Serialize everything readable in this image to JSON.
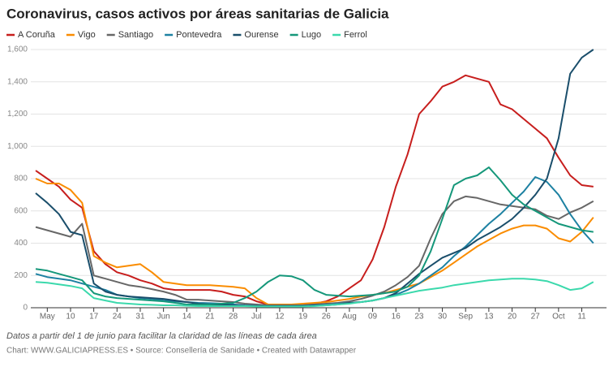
{
  "chart_data": {
    "type": "line",
    "title": "Coronavirus, casos activos por áreas sanitarias de Galicia",
    "note": "Datos a partir del 1 de junio para facilitar la claridad de las líneas de cada área",
    "source": "Chart: WWW.GALICIAPRESS.ES • Source: Consellería de Sanidade • Created with Datawrapper",
    "categories": [
      null,
      "May",
      null,
      "10",
      null,
      "17",
      null,
      "24",
      null,
      "31",
      null,
      "Jun",
      null,
      "14",
      null,
      "21",
      null,
      "28",
      null,
      "Jul",
      null,
      "12",
      null,
      "19",
      null,
      "26",
      null,
      "Aug",
      null,
      "09",
      null,
      "16",
      null,
      "23",
      null,
      "30",
      null,
      "Sep",
      null,
      "13",
      null,
      "20",
      null,
      "27",
      null,
      "Oct",
      null,
      "11",
      null
    ],
    "ylim": [
      0,
      1600
    ],
    "yticks": [
      0,
      200,
      400,
      600,
      800,
      {
        "value": 1000,
        "label": "1,000"
      },
      {
        "value": 1200,
        "label": "1,200"
      },
      {
        "value": 1400,
        "label": "1,400"
      },
      {
        "value": 1600,
        "label": "1,600"
      }
    ],
    "grid": true,
    "series": [
      {
        "name": "A Coruña",
        "color": "#c71e1d",
        "values": [
          850,
          800,
          750,
          670,
          620,
          350,
          270,
          220,
          200,
          170,
          150,
          120,
          110,
          110,
          110,
          110,
          100,
          80,
          70,
          40,
          20,
          20,
          20,
          20,
          25,
          40,
          70,
          120,
          170,
          300,
          500,
          750,
          950,
          1200,
          1280,
          1370,
          1400,
          1440,
          1420,
          1400,
          1260,
          1230,
          1170,
          1110,
          1050,
          930,
          820,
          760,
          750
        ]
      },
      {
        "name": "Vigo",
        "color": "#fa8c00",
        "values": [
          800,
          770,
          770,
          730,
          650,
          320,
          280,
          250,
          260,
          270,
          220,
          160,
          150,
          140,
          140,
          140,
          135,
          130,
          120,
          60,
          20,
          20,
          20,
          25,
          30,
          35,
          45,
          55,
          70,
          80,
          90,
          110,
          130,
          150,
          190,
          230,
          280,
          330,
          380,
          420,
          460,
          490,
          510,
          510,
          490,
          430,
          410,
          470,
          560
        ]
      },
      {
        "name": "Santiago",
        "color": "#676767",
        "values": [
          500,
          480,
          460,
          440,
          520,
          200,
          180,
          160,
          140,
          130,
          115,
          100,
          80,
          50,
          50,
          45,
          40,
          35,
          25,
          20,
          15,
          15,
          15,
          15,
          20,
          25,
          30,
          40,
          55,
          75,
          100,
          140,
          190,
          260,
          430,
          580,
          660,
          690,
          680,
          660,
          640,
          630,
          620,
          610,
          570,
          550,
          590,
          620,
          660
        ]
      },
      {
        "name": "Pontevedra",
        "color": "#1d81a2",
        "values": [
          210,
          190,
          180,
          170,
          150,
          130,
          110,
          80,
          70,
          60,
          55,
          45,
          40,
          35,
          30,
          28,
          25,
          20,
          15,
          12,
          10,
          10,
          10,
          12,
          15,
          18,
          25,
          30,
          35,
          45,
          60,
          80,
          110,
          150,
          200,
          250,
          320,
          380,
          450,
          520,
          580,
          650,
          720,
          810,
          780,
          700,
          580,
          480,
          400
        ]
      },
      {
        "name": "Ourense",
        "color": "#1a4e6b",
        "values": [
          710,
          650,
          580,
          470,
          450,
          150,
          100,
          80,
          70,
          65,
          60,
          55,
          45,
          35,
          25,
          20,
          18,
          15,
          12,
          10,
          10,
          10,
          10,
          10,
          12,
          15,
          20,
          30,
          35,
          45,
          60,
          90,
          150,
          210,
          260,
          310,
          340,
          370,
          420,
          460,
          500,
          550,
          620,
          700,
          800,
          1050,
          1450,
          1550,
          1600
        ]
      },
      {
        "name": "Lugo",
        "color": "#15977a",
        "values": [
          240,
          230,
          210,
          190,
          170,
          90,
          70,
          60,
          55,
          50,
          45,
          40,
          30,
          20,
          20,
          20,
          25,
          30,
          60,
          100,
          160,
          200,
          195,
          170,
          110,
          80,
          75,
          70,
          75,
          80,
          90,
          100,
          130,
          200,
          350,
          550,
          760,
          800,
          820,
          870,
          790,
          700,
          640,
          600,
          560,
          520,
          500,
          480,
          470
        ]
      },
      {
        "name": "Ferrol",
        "color": "#3bd9ac",
        "values": [
          160,
          155,
          145,
          135,
          120,
          60,
          45,
          30,
          25,
          20,
          18,
          15,
          15,
          12,
          10,
          10,
          10,
          10,
          10,
          8,
          8,
          8,
          8,
          8,
          10,
          15,
          20,
          25,
          35,
          45,
          60,
          75,
          90,
          105,
          115,
          125,
          140,
          150,
          160,
          170,
          175,
          180,
          180,
          175,
          165,
          140,
          110,
          120,
          160
        ]
      }
    ]
  }
}
